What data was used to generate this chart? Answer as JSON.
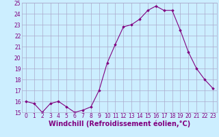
{
  "x": [
    0,
    1,
    2,
    3,
    4,
    5,
    6,
    7,
    8,
    9,
    10,
    11,
    12,
    13,
    14,
    15,
    16,
    17,
    18,
    19,
    20,
    21,
    22,
    23
  ],
  "y": [
    16.0,
    15.8,
    15.0,
    15.8,
    16.0,
    15.5,
    15.0,
    15.2,
    15.5,
    17.0,
    19.5,
    21.2,
    22.8,
    23.0,
    23.5,
    24.3,
    24.7,
    24.3,
    24.3,
    22.5,
    20.5,
    19.0,
    18.0,
    17.2
  ],
  "line_color": "#800080",
  "marker_color": "#800080",
  "bg_color": "#cceeff",
  "grid_color": "#aaaacc",
  "xlabel": "Windchill (Refroidissement éolien,°C)",
  "xlabel_color": "#800080",
  "ylim": [
    15,
    25
  ],
  "xlim": [
    -0.5,
    23.5
  ],
  "yticks": [
    15,
    16,
    17,
    18,
    19,
    20,
    21,
    22,
    23,
    24,
    25
  ],
  "xticks": [
    0,
    1,
    2,
    3,
    4,
    5,
    6,
    7,
    8,
    9,
    10,
    11,
    12,
    13,
    14,
    15,
    16,
    17,
    18,
    19,
    20,
    21,
    22,
    23
  ],
  "tick_color": "#800080",
  "tick_fontsize": 5.5,
  "xlabel_fontsize": 7
}
